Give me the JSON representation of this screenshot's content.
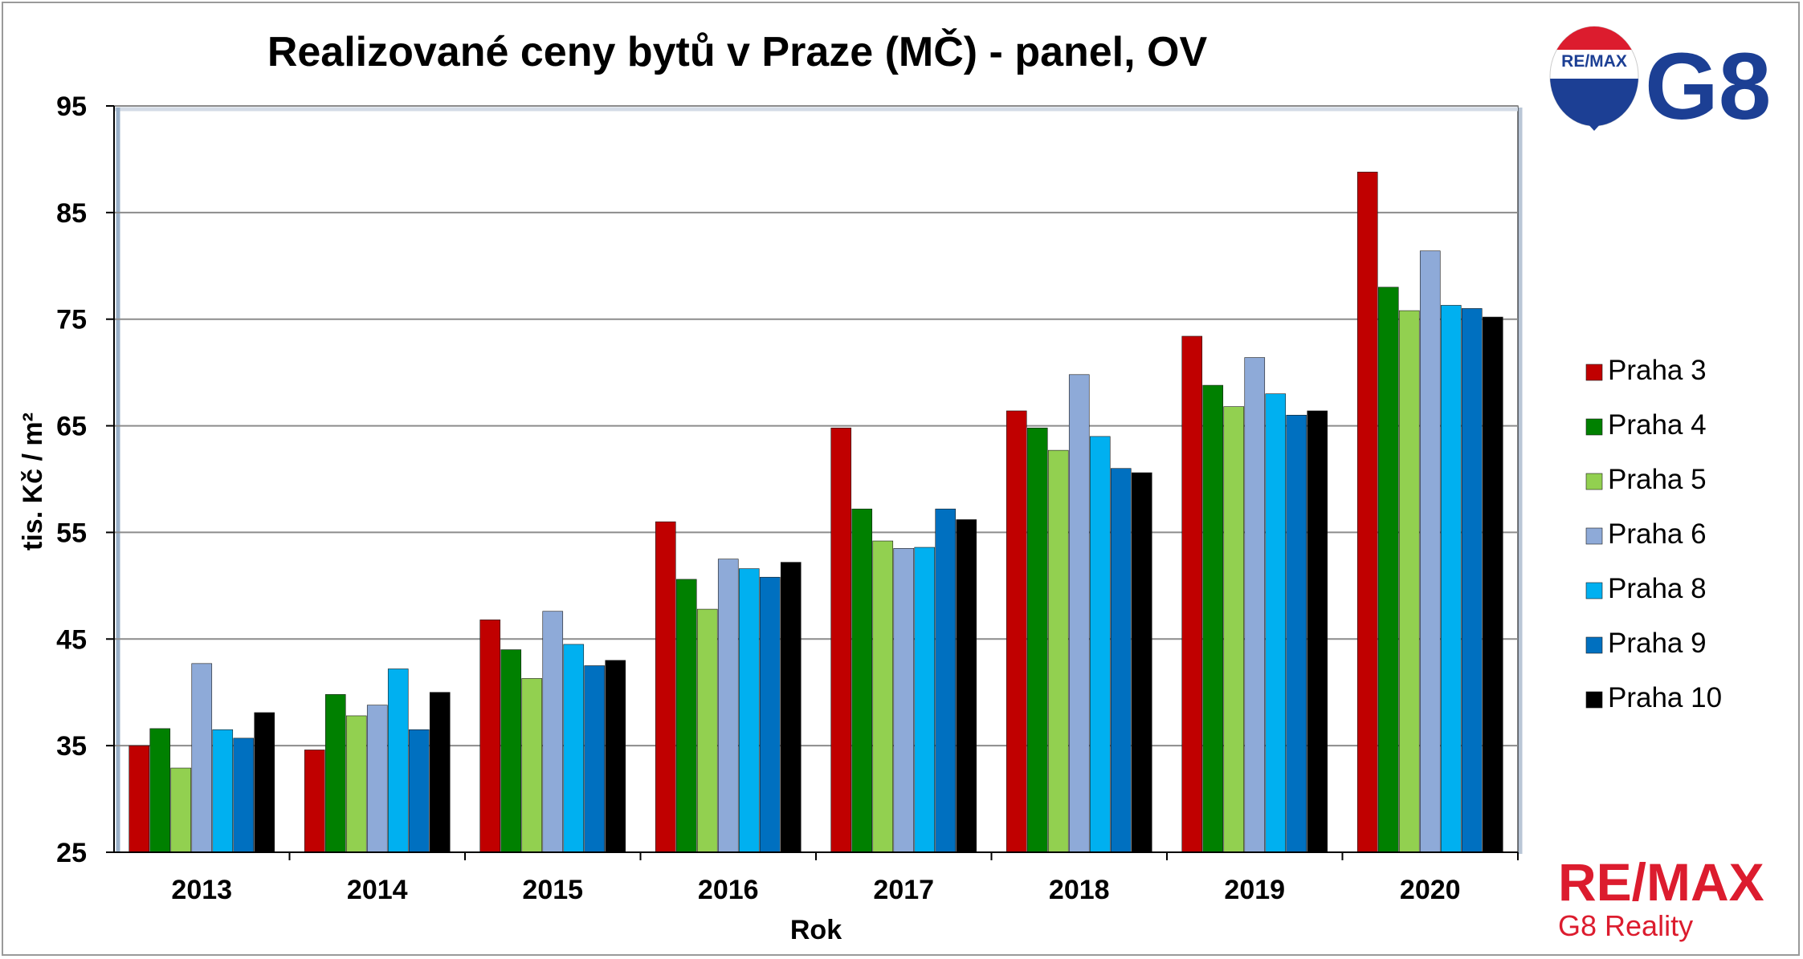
{
  "chart_data": {
    "type": "bar",
    "title": "Realizované ceny bytů v Praze (MČ) - panel, OV",
    "xlabel": "Rok",
    "ylabel": "tis. Kč / m²",
    "ylim": [
      25,
      95
    ],
    "yticks": [
      "25",
      "35",
      "45",
      "55",
      "65",
      "75",
      "85",
      "95"
    ],
    "categories": [
      "2013",
      "2014",
      "2015",
      "2016",
      "2017",
      "2018",
      "2019",
      "2020"
    ],
    "grid": true,
    "legend_position": "right",
    "series": [
      {
        "name": "Praha 3",
        "color": "#c00000",
        "values": [
          35.0,
          34.6,
          46.8,
          56.0,
          64.8,
          66.4,
          73.4,
          88.8
        ]
      },
      {
        "name": "Praha 4",
        "color": "#008000",
        "values": [
          36.6,
          39.8,
          44.0,
          50.6,
          57.2,
          64.8,
          68.8,
          78.0
        ]
      },
      {
        "name": "Praha 5",
        "color": "#92d050",
        "values": [
          32.9,
          37.8,
          41.3,
          47.8,
          54.2,
          62.7,
          66.8,
          75.8
        ]
      },
      {
        "name": "Praha 6",
        "color": "#8eaad8",
        "values": [
          42.7,
          38.8,
          47.6,
          52.5,
          53.5,
          69.8,
          71.4,
          81.4
        ]
      },
      {
        "name": "Praha 8",
        "color": "#00b0f0",
        "values": [
          36.5,
          42.2,
          44.5,
          51.6,
          53.6,
          64.0,
          68.0,
          76.3
        ]
      },
      {
        "name": "Praha 9",
        "color": "#0070c0",
        "values": [
          35.7,
          36.5,
          42.5,
          50.8,
          57.2,
          61.0,
          66.0,
          76.0
        ]
      },
      {
        "name": "Praha 10",
        "color": "#000000",
        "values": [
          38.1,
          40.0,
          43.0,
          52.2,
          56.2,
          60.6,
          66.4,
          75.2
        ]
      }
    ]
  },
  "logos": {
    "balloon_text": "RE/MAX",
    "g8_text": "G8",
    "remax_text": "RE/MAX",
    "remax_sub": "G8 Reality"
  }
}
